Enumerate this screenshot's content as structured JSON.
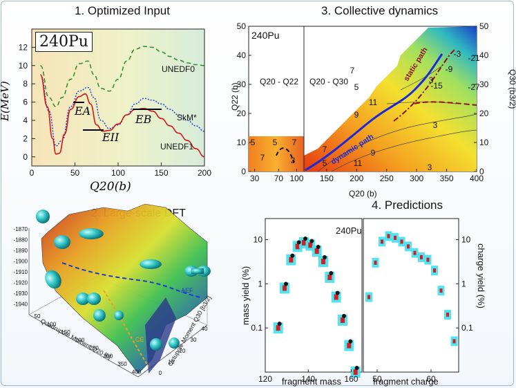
{
  "panels": {
    "p1": {
      "title": "1. Optimized Input",
      "nucleus_badge": "240Pu",
      "y_axis": "E(MeV)",
      "x_axis": "Q20(b)",
      "curve_labels": {
        "unedf0": "UNEDF0",
        "skm": "SkM*",
        "unedf1": "UNEDF1"
      },
      "markers": {
        "ea": "EA",
        "eii": "EII",
        "eb": "EB"
      },
      "x_ticks": [
        "0",
        "50",
        "100",
        "150",
        "200"
      ],
      "y_ticks": [
        "0",
        "2",
        "4",
        "6",
        "8",
        "10",
        "12"
      ]
    },
    "p2": {
      "title": "2. Large-scale DFT",
      "z_ticks": [
        "-1870",
        "-1880",
        "-1890",
        "-1900",
        "-1910",
        "-1920",
        "-1930",
        "-1940"
      ],
      "quad_axis": "Quadrupole Moment Q20 [b]",
      "oct_axis": "Octupole Moment Q30 [b3/2]",
      "quad_ticks": [
        "50",
        "100",
        "150",
        "200",
        "250",
        "300",
        "350",
        "400"
      ],
      "oct_ticks": [
        "0",
        "10",
        "20",
        "30",
        "40"
      ],
      "path_labels": {
        "aef": "AEF",
        "ce": "CE"
      }
    },
    "p3": {
      "title": "3. Collective dynamics",
      "nucleus": "240Pu",
      "left_region": "Q20 - Q22",
      "right_region": "Q20 - Q30",
      "y_left_axis": "Q22 (b)",
      "y_right_axis": "Q30 (b3/2)",
      "x_axis": "Q20 (b)",
      "static_path": "static path",
      "dynamic_path": "dynamic path",
      "x_ticks": [
        "30",
        "70",
        "100",
        "150",
        "200",
        "250",
        "300",
        "350",
        "400"
      ],
      "y_ticks": [
        "0",
        "10",
        "20",
        "30",
        "40",
        "50"
      ],
      "contour_labels": [
        "-3",
        "-9",
        "-15",
        "-21",
        "-27",
        "7",
        "5",
        "11",
        "9",
        "3",
        "3",
        "9",
        "11",
        "7",
        "5",
        "3",
        "5",
        "7",
        "5",
        "7",
        "3"
      ]
    },
    "p4": {
      "title": "4. Predictions",
      "nucleus": "240Pu",
      "y_left_axis": "mass yield (%)",
      "y_right_axis": "charge yield (%)",
      "x_left_axis": "fragment mass",
      "x_right_axis": "fragment charge",
      "mass_ticks": [
        "120",
        "140",
        "160"
      ],
      "charge_ticks": [
        "50",
        "60"
      ],
      "y_ticks": [
        "10",
        "1",
        "0.1"
      ]
    }
  },
  "chart_data": [
    {
      "type": "line",
      "title": "1. Optimized Input",
      "xlabel": "Q20(b)",
      "ylabel": "E(MeV)",
      "xlim": [
        0,
        200
      ],
      "ylim": [
        -1,
        14
      ],
      "series": [
        {
          "name": "UNEDF0",
          "x": [
            10,
            20,
            28,
            35,
            45,
            55,
            65,
            72,
            80,
            90,
            100,
            110,
            120,
            130,
            140,
            150,
            160,
            170,
            180,
            190,
            200
          ],
          "y": [
            10,
            6.5,
            5.5,
            6.5,
            8.5,
            10.2,
            10.5,
            9.0,
            7.5,
            7.2,
            8.5,
            10.5,
            11.8,
            12.1,
            12.0,
            11.5,
            11.0,
            10.6,
            10.3,
            10.1,
            10.0
          ]
        },
        {
          "name": "SkM*",
          "x": [
            10,
            20,
            28,
            35,
            45,
            55,
            65,
            72,
            80,
            90,
            100,
            110,
            120,
            130,
            140,
            150,
            160,
            170,
            180,
            190,
            200
          ],
          "y": [
            9,
            5,
            1.2,
            1.8,
            5.5,
            7.2,
            7.6,
            6.5,
            4.0,
            3.1,
            3.5,
            4.6,
            5.8,
            6.4,
            6.2,
            5.8,
            5.2,
            4.6,
            4.0,
            3.4,
            2.8
          ]
        },
        {
          "name": "UNEDF1",
          "x": [
            10,
            18,
            24,
            28,
            32,
            38,
            45,
            55,
            62,
            68,
            75,
            82,
            90,
            100,
            110,
            120,
            130,
            140,
            150,
            160,
            170,
            180,
            190,
            200
          ],
          "y": [
            9,
            5.5,
            2.0,
            0.3,
            0.4,
            2.5,
            5.2,
            6.6,
            6.9,
            5.8,
            3.5,
            2.8,
            2.9,
            3.6,
            4.6,
            5.2,
            5.3,
            5.0,
            4.2,
            3.4,
            2.6,
            1.8,
            0.9,
            0.0
          ]
        }
      ]
    },
    {
      "type": "heatmap",
      "title": "3. Collective dynamics",
      "xlabel": "Q20 (b)",
      "ylabel": "Q22 (b)",
      "xlim": [
        20,
        400
      ],
      "ylim": [
        0,
        50
      ],
      "series": [
        {
          "name": "static path",
          "x": [
            200,
            230,
            260,
            290,
            310,
            330
          ],
          "y": [
            16,
            24,
            30,
            36,
            39,
            42
          ]
        },
        {
          "name": "dynamic path",
          "x": [
            100,
            130,
            160,
            200,
            240,
            270,
            300,
            320,
            335
          ],
          "y": [
            0,
            4,
            9,
            16,
            22,
            26,
            30,
            36,
            41
          ]
        }
      ]
    },
    {
      "type": "scatter",
      "title": "4. Predictions",
      "xlabel": "fragment mass",
      "ylabel": "mass yield (%)",
      "xlim": [
        120,
        165
      ],
      "ylim": [
        0.01,
        30
      ],
      "series": [
        {
          "x": [
            126,
            129,
            132,
            135,
            138,
            141,
            144,
            147,
            150,
            153,
            156,
            159,
            162
          ],
          "y": [
            0.1,
            0.8,
            3.5,
            7.0,
            8.5,
            7.5,
            5.5,
            3.2,
            1.4,
            0.5,
            0.15,
            0.04,
            0.01
          ]
        }
      ]
    }
  ]
}
